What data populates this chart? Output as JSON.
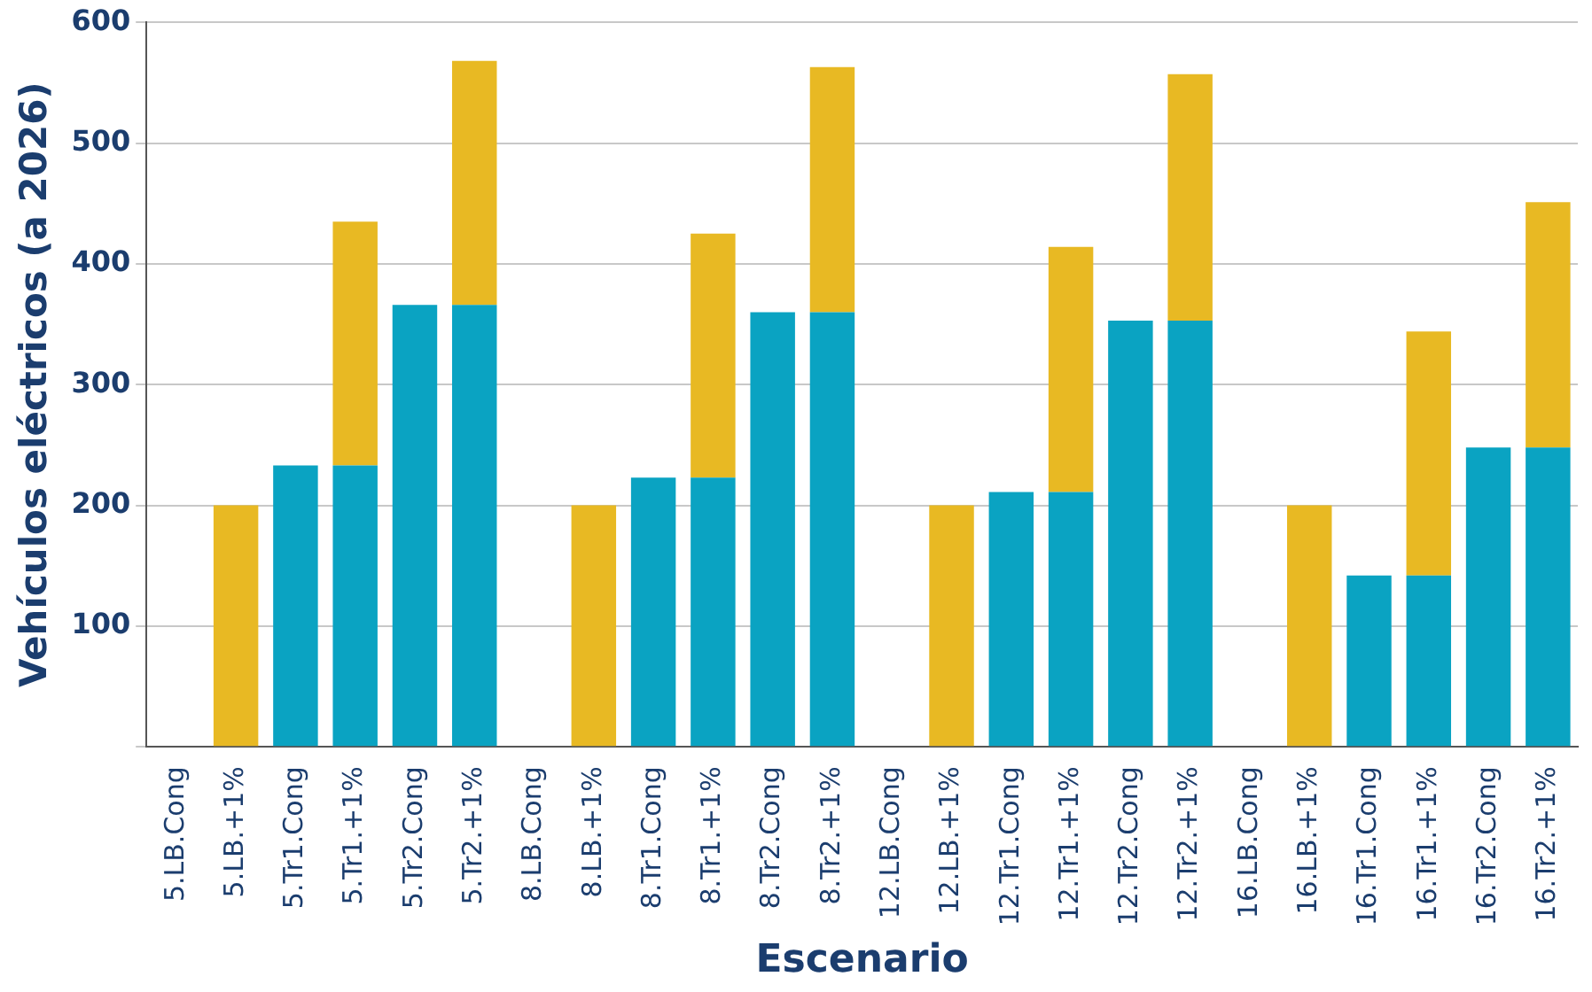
{
  "chart_data": {
    "type": "bar",
    "stacked": true,
    "xlabel": "Escenario",
    "ylabel": "Vehículos eléctricos (a 2026)",
    "categories": [
      "5.LB.Cong",
      "5.LB.+1%",
      "5.Tr1.Cong",
      "5.Tr1.+1%",
      "5.Tr2.Cong",
      "5.Tr2.+1%",
      "8.LB.Cong",
      "8.LB.+1%",
      "8.Tr1.Cong",
      "8.Tr1.+1%",
      "8.Tr2.Cong",
      "8.Tr2.+1%",
      "12.LB.Cong",
      "12.LB.+1%",
      "12.Tr1.Cong",
      "12.Tr1.+1%",
      "12.Tr2.Cong",
      "12.Tr2.+1%",
      "16.LB.Cong",
      "16.LB.+1%",
      "16.Tr1.Cong",
      "16.Tr1.+1%",
      "16.Tr2.Cong",
      "16.Tr2.+1%"
    ],
    "series": [
      {
        "color": "#0aa3c2",
        "values": [
          0,
          0,
          233,
          233,
          366,
          366,
          0,
          0,
          223,
          223,
          360,
          360,
          0,
          0,
          211,
          211,
          353,
          353,
          0,
          0,
          142,
          142,
          248,
          248
        ]
      },
      {
        "color": "#e8b923",
        "values": [
          0,
          200,
          0,
          202,
          0,
          202,
          0,
          200,
          0,
          202,
          0,
          203,
          0,
          200,
          0,
          203,
          0,
          204,
          0,
          200,
          0,
          202,
          0,
          203
        ]
      }
    ],
    "ylim": [
      0,
      600
    ],
    "yticks": [
      {
        "value": 0,
        "label": null
      },
      100,
      200,
      300,
      400,
      500,
      600
    ],
    "grid": "y",
    "legend": false
  }
}
